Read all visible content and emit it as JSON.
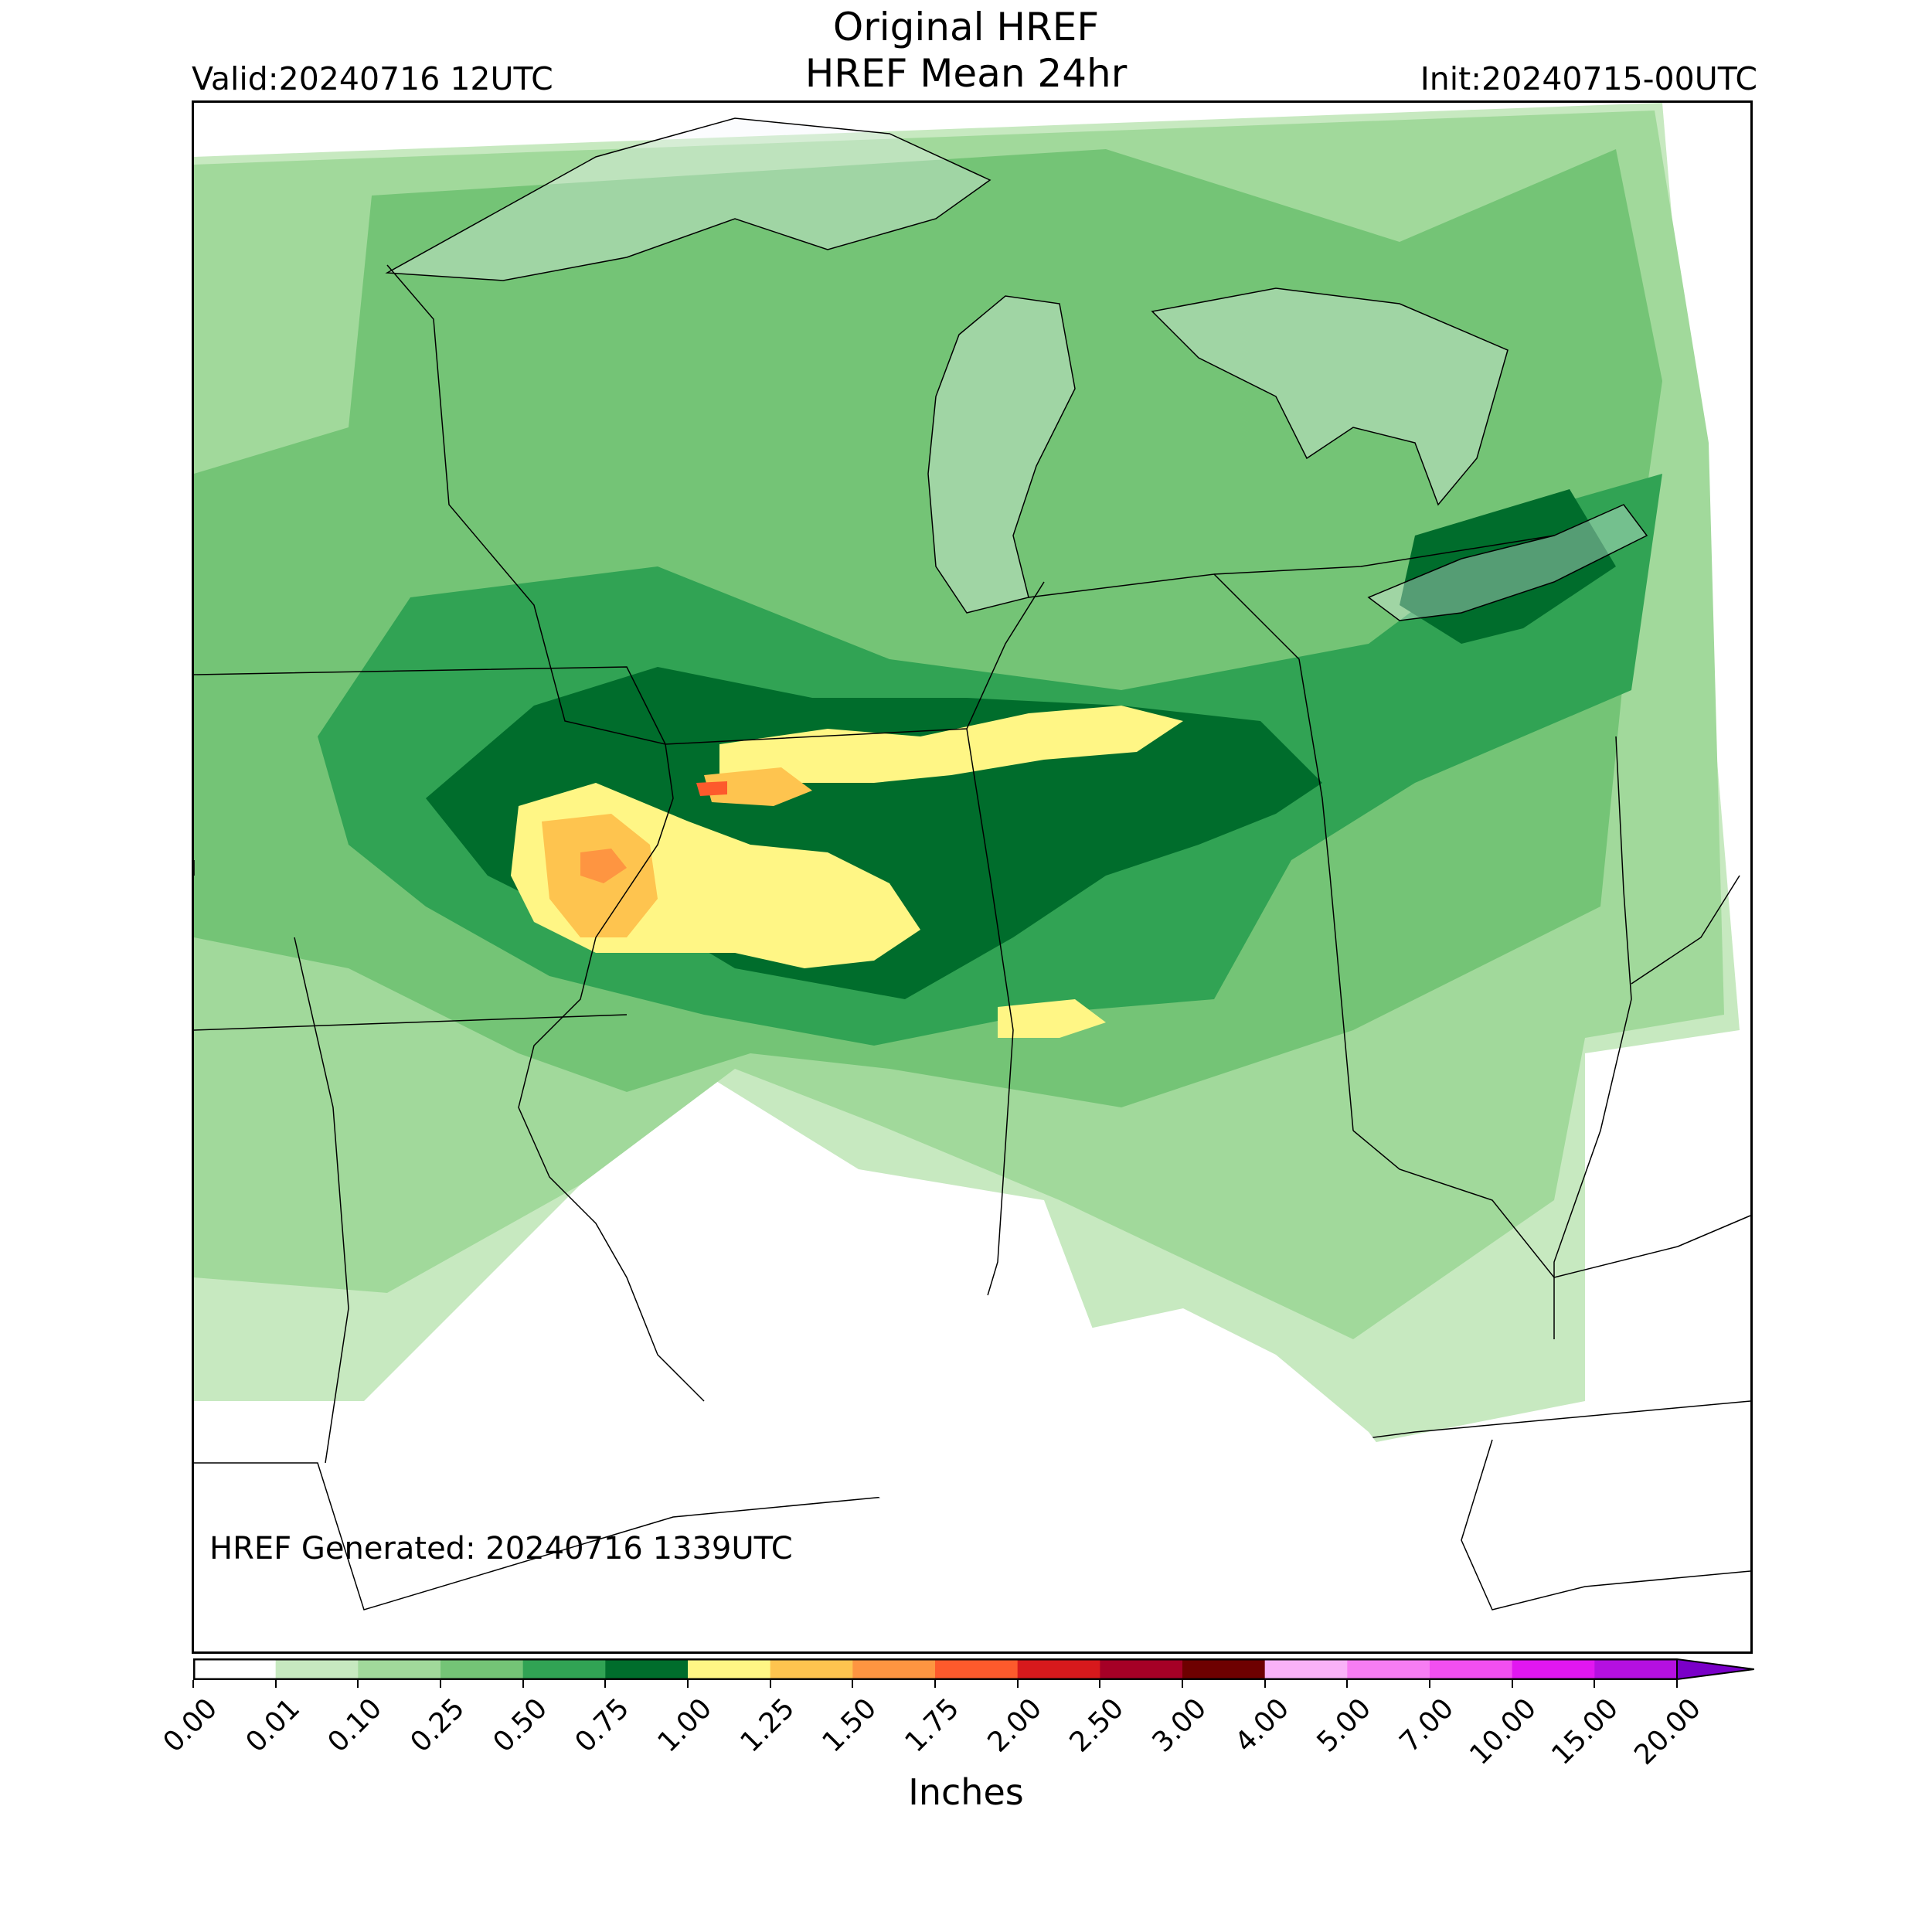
{
  "header": {
    "title_line1": "Original HREF",
    "title_line2": "HREF Mean 24hr",
    "valid": "Valid:20240716 12UTC",
    "init": "Init:20240715-00UTC"
  },
  "footer": {
    "generated": "HREF Generated: 20240716 1339UTC"
  },
  "colorbar": {
    "label": "Inches",
    "ticks": [
      "0.00",
      "0.01",
      "0.10",
      "0.25",
      "0.50",
      "0.75",
      "1.00",
      "1.25",
      "1.50",
      "1.75",
      "2.00",
      "2.50",
      "3.00",
      "4.00",
      "5.00",
      "7.00",
      "10.00",
      "15.00",
      "20.00"
    ],
    "colors": [
      "#ffffff",
      "#c7e9c0",
      "#a1d99b",
      "#74c476",
      "#31a354",
      "#006d2c",
      "#fff685",
      "#fec44f",
      "#fe9541",
      "#fd5a2c",
      "#d7191c",
      "#a50026",
      "#6e0000",
      "#f9b2f8",
      "#f77df3",
      "#f24ff0",
      "#e117f0",
      "#b510e0",
      "#7a00c8"
    ],
    "extend": "max"
  },
  "map": {
    "projection": "regional",
    "region": "Midwest / Great Lakes, USA",
    "lake_color": "#f3f6fb",
    "border_color": "#000000"
  }
}
